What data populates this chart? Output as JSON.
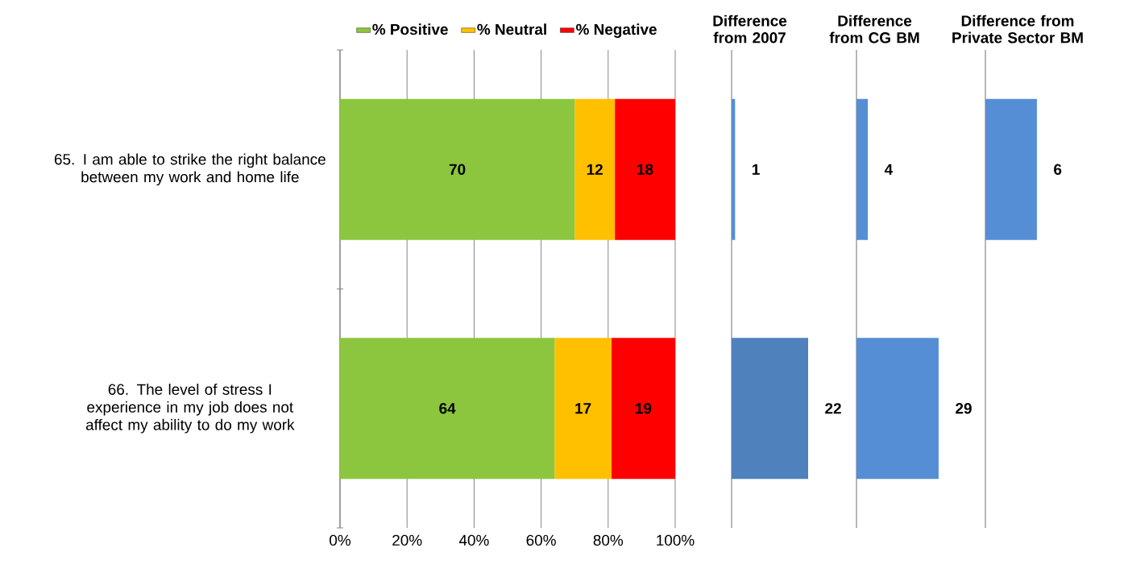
{
  "chart_data": [
    {
      "type": "bar",
      "orientation": "horizontal",
      "stacked": true,
      "categories": [
        "65. I am able to strike the right balance between my work and home life",
        "66. The level of stress I experience in my job does not affect my ability to do my work"
      ],
      "series": [
        {
          "name": "% Positive",
          "color": "#8cc63f",
          "values": [
            70,
            64
          ]
        },
        {
          "name": "% Neutral",
          "color": "#ffc000",
          "values": [
            12,
            17
          ]
        },
        {
          "name": "% Negative",
          "color": "#ff0000",
          "values": [
            18,
            19
          ]
        }
      ],
      "xlim": [
        0,
        100
      ],
      "xticks": [
        {
          "value": 0,
          "label": "0%"
        },
        {
          "value": 20,
          "label": "20%"
        },
        {
          "value": 40,
          "label": "40%"
        },
        {
          "value": 60,
          "label": "60%"
        },
        {
          "value": 80,
          "label": "80%"
        },
        {
          "value": 100,
          "label": "100%"
        }
      ],
      "grid": "x",
      "legend": "top",
      "data_labels": true
    },
    {
      "type": "bar",
      "orientation": "horizontal",
      "title": "Difference from 2007",
      "categories": [
        null,
        null
      ],
      "values": [
        1,
        22
      ],
      "colors": [
        "#558ed5",
        "#4f81bd"
      ],
      "tick_labels": false,
      "data_labels": true
    },
    {
      "type": "bar",
      "orientation": "horizontal",
      "title": "Difference from CG BM",
      "categories": [
        null,
        null
      ],
      "values": [
        4,
        29
      ],
      "colors": [
        "#558ed5",
        "#558ed5"
      ],
      "tick_labels": false,
      "data_labels": true
    },
    {
      "type": "bar",
      "orientation": "horizontal",
      "title": "Difference from Private Sector BM",
      "categories": [
        null,
        null
      ],
      "values": [
        6,
        null
      ],
      "colors": [
        "#558ed5",
        "#558ed5"
      ],
      "tick_labels": false,
      "data_labels": true
    }
  ]
}
